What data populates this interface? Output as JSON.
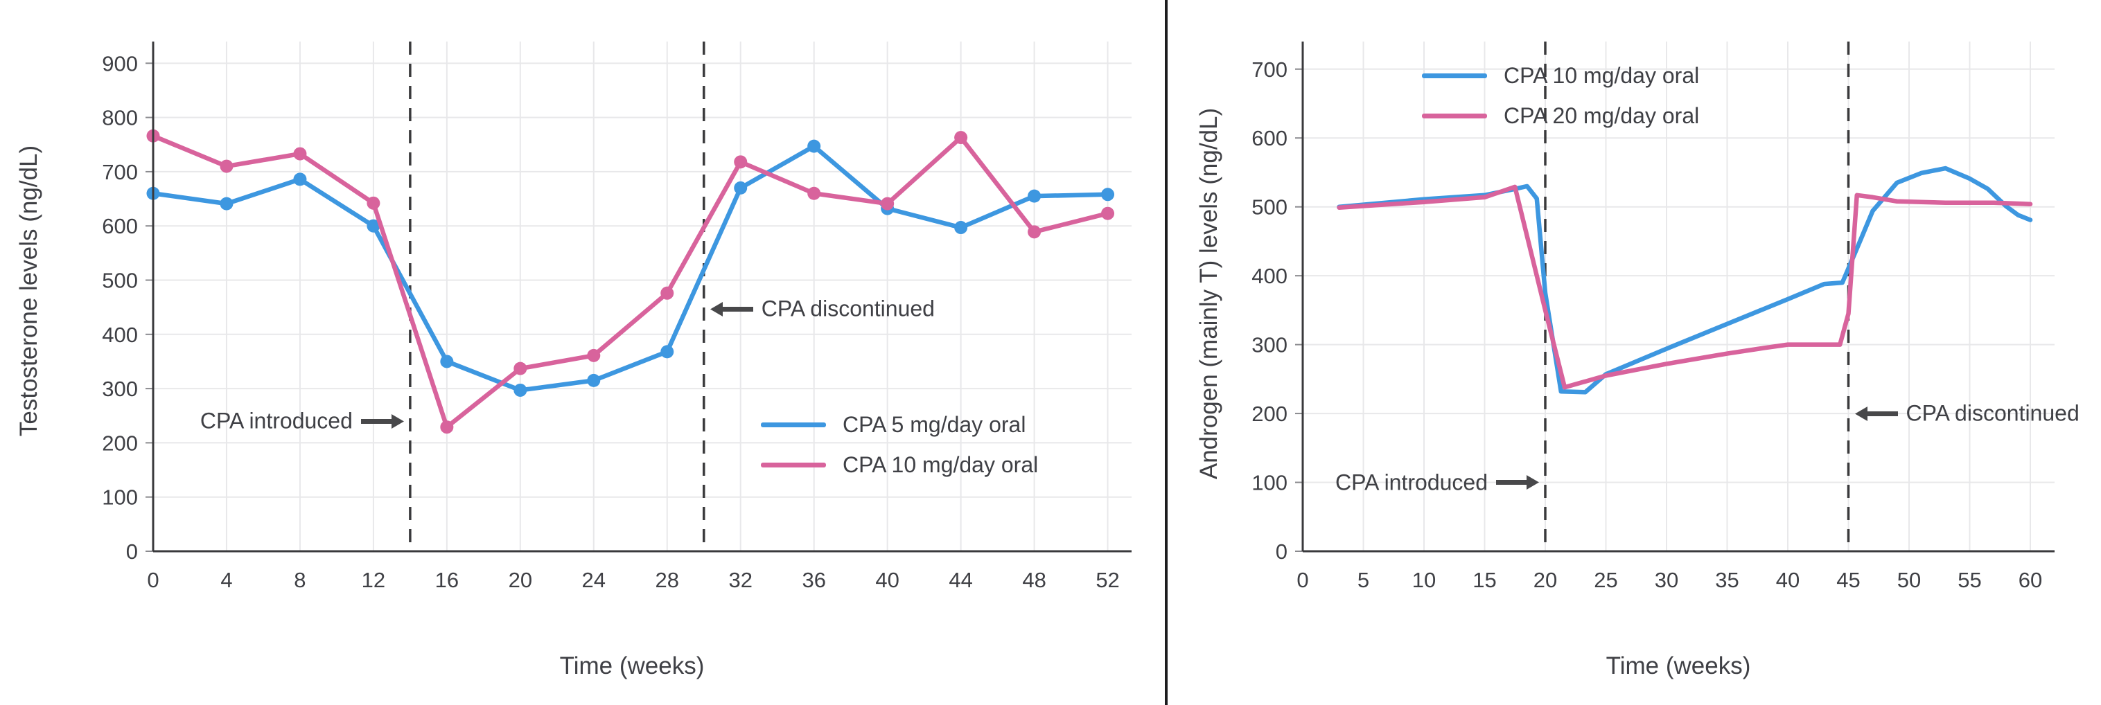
{
  "style": {
    "background": "#ffffff",
    "grid": "#e8e8ea",
    "dark": "#3a3a3c",
    "text": "#3f4045",
    "arrow": "#48484a",
    "divider": "#1c1c1e",
    "blue": "#3d97e0",
    "pink": "#d8639c"
  },
  "chart_data": [
    {
      "type": "line",
      "title": "",
      "xlabel": "Time (weeks)",
      "ylabel": "Testosterone levels (ng/dL)",
      "xlim": [
        0,
        53.3
      ],
      "ylim": [
        0,
        940
      ],
      "x_ticks": [
        0,
        4,
        8,
        12,
        16,
        20,
        24,
        28,
        32,
        36,
        40,
        44,
        48,
        52
      ],
      "y_ticks": [
        0,
        100,
        200,
        300,
        400,
        500,
        600,
        700,
        800,
        900
      ],
      "grid": true,
      "markers": true,
      "legend_position": "lower right",
      "series": [
        {
          "name": "CPA 5 mg/day oral",
          "color": "#3d97e0",
          "x": [
            0,
            4,
            8,
            12,
            16,
            20,
            24,
            28,
            32,
            36,
            40,
            44,
            48,
            52
          ],
          "y": [
            660,
            641,
            686,
            600,
            350,
            297,
            315,
            368,
            670,
            747,
            632,
            597,
            655,
            658
          ]
        },
        {
          "name": "CPA 10 mg/day oral",
          "color": "#d8639c",
          "x": [
            0,
            4,
            8,
            12,
            16,
            20,
            24,
            28,
            32,
            36,
            40,
            44,
            48,
            52
          ],
          "y": [
            766,
            710,
            733,
            642,
            229,
            337,
            361,
            476,
            718,
            660,
            641,
            763,
            589,
            623
          ]
        }
      ],
      "events": [
        {
          "week": 14,
          "label": "CPA introduced",
          "value": 240,
          "text_side": "left"
        },
        {
          "week": 30,
          "label": "CPA discontinued",
          "value": 447,
          "text_side": "right"
        }
      ]
    },
    {
      "type": "line",
      "title": "",
      "xlabel": "Time (weeks)",
      "ylabel": "Androgen (mainly T) levels (ng/dL)",
      "xlim": [
        0,
        62
      ],
      "ylim": [
        0,
        740
      ],
      "x_ticks": [
        0,
        5,
        10,
        15,
        20,
        25,
        30,
        35,
        40,
        45,
        50,
        55,
        60
      ],
      "y_ticks": [
        0,
        100,
        200,
        300,
        400,
        500,
        600,
        700
      ],
      "grid": true,
      "markers": false,
      "legend_position": "upper left",
      "series": [
        {
          "name": "CPA 10 mg/day oral",
          "color": "#3d97e0",
          "x": [
            3,
            10,
            15,
            17.5,
            18.5,
            19.3,
            20,
            21.3,
            23.3,
            25,
            30,
            35,
            40,
            43,
            44.5,
            46,
            47,
            49,
            51,
            53,
            55,
            56.5,
            58,
            59,
            60
          ],
          "y": [
            500,
            511,
            517,
            526,
            530,
            512,
            375,
            232,
            231,
            257,
            294,
            330,
            366,
            388,
            390,
            452,
            494,
            535,
            549,
            556,
            541,
            526,
            501,
            488,
            481
          ]
        },
        {
          "name": "CPA 20 mg/day oral",
          "color": "#d8639c",
          "x": [
            3,
            10,
            15,
            17.5,
            20,
            21.6,
            25,
            30,
            35,
            38,
            40,
            44.3,
            45,
            45.7,
            47,
            49,
            53,
            57,
            60
          ],
          "y": [
            499,
            507,
            514,
            529,
            350,
            238,
            255,
            272,
            287,
            295,
            300,
            300,
            345,
            517,
            514,
            508,
            506,
            506,
            504
          ]
        }
      ],
      "events": [
        {
          "week": 20,
          "label": "CPA introduced",
          "value": 100,
          "text_side": "left"
        },
        {
          "week": 45,
          "label": "CPA discontinued",
          "value": 200,
          "text_side": "right"
        }
      ]
    }
  ]
}
